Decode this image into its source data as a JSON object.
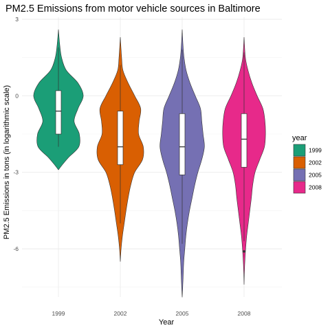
{
  "chart_data": {
    "type": "violin",
    "title": "PM2.5 Emissions from motor vehicle sources in Baltimore",
    "xlabel": "Year",
    "ylabel": "PM2.5 Emissions in tons (in logarithmic scale)",
    "categories": [
      "1999",
      "2002",
      "2005",
      "2008"
    ],
    "y_ticks": [
      3,
      0,
      -3,
      -6
    ],
    "ylim": [
      -7.9,
      3.3
    ],
    "grid": true,
    "legend": {
      "title": "year",
      "position": "right",
      "entries": [
        {
          "label": "1999",
          "color": "#1b9e77"
        },
        {
          "label": "2002",
          "color": "#d95f02"
        },
        {
          "label": "2005",
          "color": "#7570b3"
        },
        {
          "label": "2008",
          "color": "#e7298a"
        }
      ]
    },
    "series": [
      {
        "year": "1999",
        "color": "#1b9e77",
        "violin_min": -2.9,
        "violin_max": 2.6,
        "box": {
          "lower_whisker": -2.0,
          "q1": -1.5,
          "median": -0.6,
          "q3": 0.2,
          "upper_whisker": 1.9
        },
        "density": [
          [
            2.6,
            0.0
          ],
          [
            2.0,
            0.05
          ],
          [
            1.5,
            0.12
          ],
          [
            1.0,
            0.3
          ],
          [
            0.5,
            0.75
          ],
          [
            0.0,
            0.95
          ],
          [
            -0.5,
            0.75
          ],
          [
            -1.0,
            0.6
          ],
          [
            -1.5,
            0.8
          ],
          [
            -2.0,
            0.78
          ],
          [
            -2.4,
            0.4
          ],
          [
            -2.7,
            0.15
          ],
          [
            -2.9,
            0.0
          ]
        ]
      },
      {
        "year": "2002",
        "color": "#d95f02",
        "violin_min": -6.5,
        "violin_max": 2.3,
        "box": {
          "lower_whisker": -5.0,
          "q1": -2.7,
          "median": -2.0,
          "q3": -0.6,
          "upper_whisker": 1.2
        },
        "density": [
          [
            2.3,
            0.0
          ],
          [
            1.5,
            0.05
          ],
          [
            1.0,
            0.1
          ],
          [
            0.5,
            0.3
          ],
          [
            0.0,
            0.55
          ],
          [
            -0.5,
            0.78
          ],
          [
            -1.0,
            0.72
          ],
          [
            -1.5,
            0.7
          ],
          [
            -2.0,
            0.88
          ],
          [
            -2.5,
            0.85
          ],
          [
            -3.0,
            0.55
          ],
          [
            -3.5,
            0.4
          ],
          [
            -4.0,
            0.3
          ],
          [
            -4.5,
            0.22
          ],
          [
            -5.0,
            0.15
          ],
          [
            -5.5,
            0.08
          ],
          [
            -6.0,
            0.03
          ],
          [
            -6.5,
            0.0
          ]
        ]
      },
      {
        "year": "2005",
        "color": "#7570b3",
        "violin_min": -7.9,
        "violin_max": 2.6,
        "box": {
          "lower_whisker": -5.8,
          "q1": -3.1,
          "median": -2.0,
          "q3": -0.7,
          "upper_whisker": 1.8
        },
        "density": [
          [
            2.6,
            0.0
          ],
          [
            2.0,
            0.03
          ],
          [
            1.5,
            0.07
          ],
          [
            1.0,
            0.15
          ],
          [
            0.5,
            0.3
          ],
          [
            0.0,
            0.5
          ],
          [
            -0.5,
            0.7
          ],
          [
            -1.0,
            0.75
          ],
          [
            -1.5,
            0.8
          ],
          [
            -2.0,
            0.85
          ],
          [
            -2.5,
            0.75
          ],
          [
            -3.0,
            0.6
          ],
          [
            -3.5,
            0.48
          ],
          [
            -4.0,
            0.38
          ],
          [
            -4.5,
            0.28
          ],
          [
            -5.0,
            0.2
          ],
          [
            -5.5,
            0.14
          ],
          [
            -6.0,
            0.1
          ],
          [
            -6.5,
            0.06
          ],
          [
            -7.0,
            0.04
          ],
          [
            -7.5,
            0.02
          ],
          [
            -7.9,
            0.0
          ]
        ]
      },
      {
        "year": "2008",
        "color": "#e7298a",
        "violin_min": -7.4,
        "violin_max": 2.3,
        "box": {
          "lower_whisker": -5.7,
          "q1": -2.8,
          "median": -1.7,
          "q3": -0.7,
          "upper_whisker": 1.7
        },
        "density": [
          [
            2.3,
            0.0
          ],
          [
            1.5,
            0.05
          ],
          [
            1.0,
            0.15
          ],
          [
            0.5,
            0.3
          ],
          [
            0.0,
            0.5
          ],
          [
            -0.5,
            0.72
          ],
          [
            -1.0,
            0.8
          ],
          [
            -1.5,
            0.82
          ],
          [
            -2.0,
            0.78
          ],
          [
            -2.5,
            0.6
          ],
          [
            -3.0,
            0.42
          ],
          [
            -3.5,
            0.33
          ],
          [
            -4.0,
            0.28
          ],
          [
            -4.5,
            0.22
          ],
          [
            -5.0,
            0.16
          ],
          [
            -5.5,
            0.1
          ],
          [
            -6.0,
            0.06
          ],
          [
            -6.5,
            0.03
          ],
          [
            -7.0,
            0.01
          ],
          [
            -7.4,
            0.0
          ]
        ]
      }
    ],
    "outliers": [
      {
        "year": "2008",
        "y": -6.1
      }
    ]
  }
}
